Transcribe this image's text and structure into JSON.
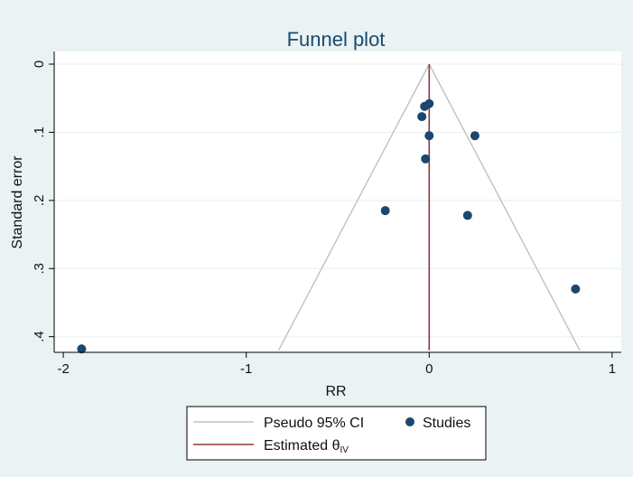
{
  "chart_data": {
    "type": "scatter",
    "title": "Funnel plot",
    "xlabel": "RR",
    "ylabel": "Standard error",
    "xlim": [
      -2.05,
      1.05
    ],
    "ylim": [
      0,
      0.415
    ],
    "y_reversed": true,
    "x_ticks": [
      {
        "value": -2,
        "label": "-2"
      },
      {
        "value": -1,
        "label": "-1"
      },
      {
        "value": 0,
        "label": "0"
      },
      {
        "value": 1,
        "label": "1"
      }
    ],
    "y_ticks": [
      {
        "value": 0,
        "label": "0"
      },
      {
        "value": 0.1,
        "label": ".1"
      },
      {
        "value": 0.2,
        "label": ".2"
      },
      {
        "value": 0.3,
        "label": ".3"
      },
      {
        "value": 0.4,
        "label": ".4"
      }
    ],
    "grid": true,
    "estimate": 0,
    "ci_level": 0.95,
    "series": [
      {
        "name": "Studies",
        "color": "#1a476f",
        "points": [
          {
            "x": 0.0,
            "y": 0.058
          },
          {
            "x": -0.025,
            "y": 0.062
          },
          {
            "x": -0.04,
            "y": 0.077
          },
          {
            "x": 0.0,
            "y": 0.105
          },
          {
            "x": 0.25,
            "y": 0.105
          },
          {
            "x": -0.02,
            "y": 0.139
          },
          {
            "x": -0.24,
            "y": 0.215
          },
          {
            "x": 0.21,
            "y": 0.222
          },
          {
            "x": 0.8,
            "y": 0.33
          },
          {
            "x": -1.9,
            "y": 0.418
          }
        ]
      }
    ],
    "legend": {
      "position": "bottom",
      "entries": [
        {
          "key": "ci",
          "label": "Pseudo 95% CI",
          "color": "#c0c0c0"
        },
        {
          "key": "studies",
          "label": "Studies",
          "color": "#1a476f"
        },
        {
          "key": "estimate",
          "label": "Estimated θ",
          "subscript": "IV",
          "color": "#90353b"
        }
      ]
    }
  }
}
